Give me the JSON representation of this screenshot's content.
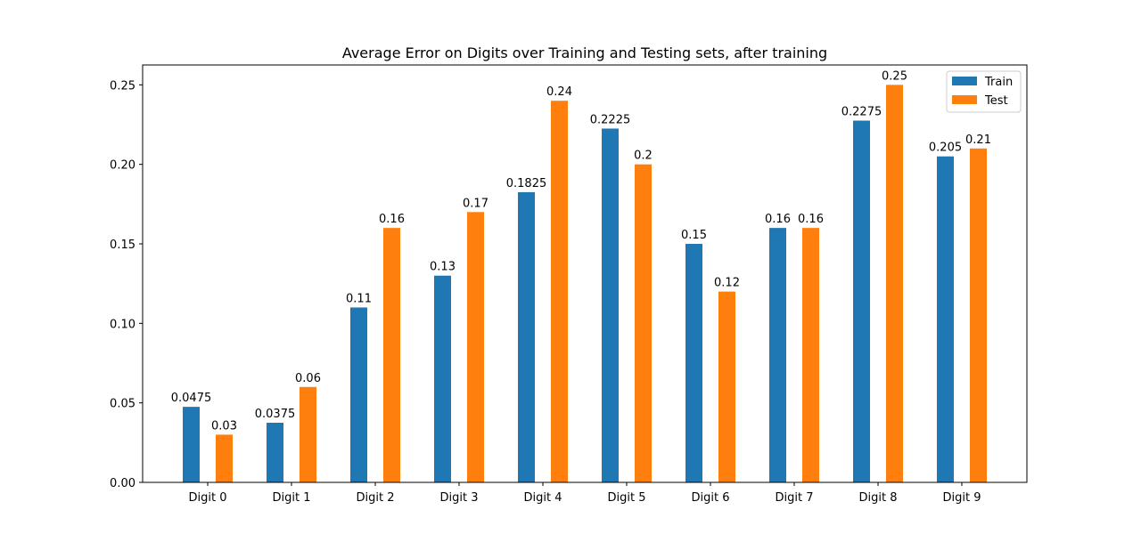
{
  "chart_data": {
    "type": "bar",
    "title": "Average Error on Digits over Training and Testing sets, after training",
    "xlabel": "",
    "ylabel": "",
    "categories": [
      "Digit 0",
      "Digit 1",
      "Digit 2",
      "Digit 3",
      "Digit 4",
      "Digit 5",
      "Digit 6",
      "Digit 7",
      "Digit 8",
      "Digit 9"
    ],
    "series": [
      {
        "name": "Train",
        "color": "#1f77b4",
        "values": [
          0.0475,
          0.0375,
          0.11,
          0.13,
          0.1825,
          0.2225,
          0.15,
          0.16,
          0.2275,
          0.205
        ],
        "labels": [
          "0.0475",
          "0.0375",
          "0.11",
          "0.13",
          "0.1825",
          "0.2225",
          "0.15",
          "0.16",
          "0.2275",
          "0.205"
        ]
      },
      {
        "name": "Test",
        "color": "#ff7f0e",
        "values": [
          0.03,
          0.06,
          0.16,
          0.17,
          0.24,
          0.2,
          0.12,
          0.16,
          0.25,
          0.21
        ],
        "labels": [
          "0.03",
          "0.06",
          "0.16",
          "0.17",
          "0.24",
          "0.2",
          "0.12",
          "0.16",
          "0.25",
          "0.21"
        ]
      }
    ],
    "ylim": [
      0,
      0.2625
    ],
    "yticks": [
      "0.00",
      "0.05",
      "0.10",
      "0.15",
      "0.20",
      "0.25"
    ],
    "ytick_values": [
      0,
      0.05,
      0.1,
      0.15,
      0.2,
      0.25
    ],
    "grid": false,
    "legend_position": "top-right"
  }
}
